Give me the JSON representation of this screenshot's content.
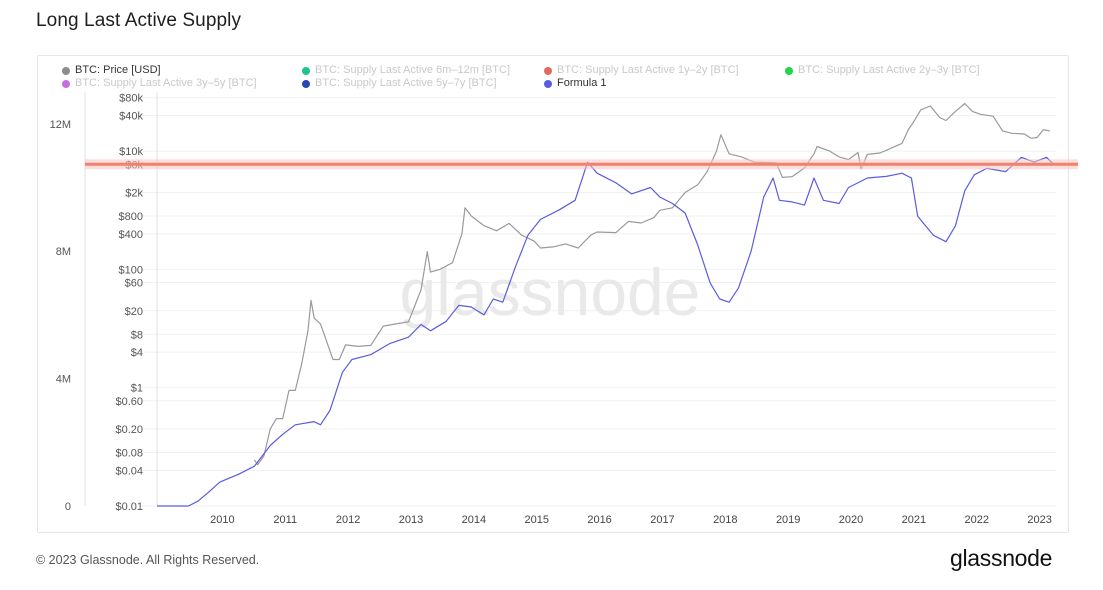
{
  "page": {
    "title": "Long Last Active Supply",
    "copyright": "© 2023 Glassnode. All Rights Reserved.",
    "logo_text": "glassnode",
    "watermark_text": "glassnode"
  },
  "legend": [
    {
      "label": "BTC: Price [USD]",
      "color": "#8c8c8c",
      "muted": false
    },
    {
      "label": "BTC: Supply Last Active 6m–12m [BTC]",
      "color": "#1fc48a",
      "muted": true
    },
    {
      "label": "BTC: Supply Last Active 1y–2y [BTC]",
      "color": "#e06a5f",
      "muted": true
    },
    {
      "label": "BTC: Supply Last Active 2y–3y [BTC]",
      "color": "#22d64a",
      "muted": true
    },
    {
      "label": "BTC: Supply Last Active 3y–5y [BTC]",
      "color": "#c66fdc",
      "muted": true
    },
    {
      "label": "BTC: Supply Last Active 5y–7y [BTC]",
      "color": "#2747b8",
      "muted": true
    },
    {
      "label": "Formula 1",
      "color": "#5a5ce0",
      "muted": false
    }
  ],
  "chart_data": {
    "type": "line",
    "title": "Long Last Active Supply",
    "x_ticks": [
      "2010",
      "2011",
      "2012",
      "2013",
      "2014",
      "2015",
      "2016",
      "2017",
      "2018",
      "2019",
      "2020",
      "2021",
      "2022",
      "2023"
    ],
    "left_axis": {
      "ticks": [
        "0",
        "4M",
        "8M",
        "12M"
      ],
      "values": [
        0,
        4000000,
        8000000,
        12000000
      ],
      "range": [
        0,
        13000000
      ]
    },
    "right_axis": {
      "scale": "log",
      "ticks": [
        "$0.01",
        "$0.04",
        "$0.08",
        "$0.20",
        "$0.60",
        "$1",
        "$4",
        "$8",
        "$20",
        "$60",
        "$100",
        "$400",
        "$800",
        "$2k",
        "$6k",
        "$10k",
        "$40k",
        "$80k"
      ],
      "values": [
        0.01,
        0.04,
        0.08,
        0.2,
        0.6,
        1,
        4,
        8,
        20,
        60,
        100,
        400,
        800,
        2000,
        6000,
        10000,
        40000,
        80000
      ],
      "range": [
        0.01,
        100000
      ]
    },
    "grid": true,
    "legend_position": "top",
    "horizontal_line": {
      "price": 6000,
      "color": "#f08070",
      "note": "highlighted level"
    },
    "series": [
      {
        "name": "BTC: Price [USD]",
        "axis": "right",
        "color": "#9a9a9a",
        "points": [
          [
            2010.55,
            0.06
          ],
          [
            2010.6,
            0.05
          ],
          [
            2010.7,
            0.07
          ],
          [
            2010.8,
            0.2
          ],
          [
            2010.9,
            0.3
          ],
          [
            2011.0,
            0.3
          ],
          [
            2011.1,
            0.9
          ],
          [
            2011.2,
            0.9
          ],
          [
            2011.3,
            2.5
          ],
          [
            2011.4,
            9
          ],
          [
            2011.45,
            30
          ],
          [
            2011.5,
            15
          ],
          [
            2011.6,
            12
          ],
          [
            2011.7,
            6
          ],
          [
            2011.8,
            3
          ],
          [
            2011.9,
            3
          ],
          [
            2012.0,
            5.3
          ],
          [
            2012.2,
            5
          ],
          [
            2012.4,
            5.2
          ],
          [
            2012.6,
            11
          ],
          [
            2012.8,
            12
          ],
          [
            2013.0,
            13
          ],
          [
            2013.2,
            45
          ],
          [
            2013.3,
            200
          ],
          [
            2013.35,
            90
          ],
          [
            2013.5,
            100
          ],
          [
            2013.7,
            130
          ],
          [
            2013.85,
            400
          ],
          [
            2013.9,
            1100
          ],
          [
            2014.0,
            800
          ],
          [
            2014.2,
            550
          ],
          [
            2014.4,
            450
          ],
          [
            2014.6,
            600
          ],
          [
            2014.8,
            380
          ],
          [
            2015.0,
            300
          ],
          [
            2015.1,
            230
          ],
          [
            2015.3,
            240
          ],
          [
            2015.5,
            270
          ],
          [
            2015.7,
            230
          ],
          [
            2015.9,
            380
          ],
          [
            2016.0,
            430
          ],
          [
            2016.3,
            420
          ],
          [
            2016.5,
            650
          ],
          [
            2016.7,
            610
          ],
          [
            2016.9,
            750
          ],
          [
            2017.0,
            1000
          ],
          [
            2017.2,
            1100
          ],
          [
            2017.4,
            2000
          ],
          [
            2017.6,
            2700
          ],
          [
            2017.75,
            4500
          ],
          [
            2017.9,
            10000
          ],
          [
            2017.97,
            19000
          ],
          [
            2018.1,
            9000
          ],
          [
            2018.3,
            8000
          ],
          [
            2018.5,
            6500
          ],
          [
            2018.7,
            6400
          ],
          [
            2018.85,
            6300
          ],
          [
            2018.95,
            3600
          ],
          [
            2019.1,
            3700
          ],
          [
            2019.3,
            5200
          ],
          [
            2019.45,
            9000
          ],
          [
            2019.5,
            12000
          ],
          [
            2019.7,
            10000
          ],
          [
            2019.85,
            8000
          ],
          [
            2020.0,
            7200
          ],
          [
            2020.15,
            9500
          ],
          [
            2020.2,
            5000
          ],
          [
            2020.3,
            8800
          ],
          [
            2020.5,
            9300
          ],
          [
            2020.7,
            11500
          ],
          [
            2020.85,
            13500
          ],
          [
            2020.95,
            23000
          ],
          [
            2021.05,
            33000
          ],
          [
            2021.15,
            50000
          ],
          [
            2021.3,
            58000
          ],
          [
            2021.45,
            37000
          ],
          [
            2021.55,
            33000
          ],
          [
            2021.7,
            47000
          ],
          [
            2021.85,
            64000
          ],
          [
            2021.97,
            47000
          ],
          [
            2022.1,
            42000
          ],
          [
            2022.3,
            39000
          ],
          [
            2022.45,
            22000
          ],
          [
            2022.6,
            20000
          ],
          [
            2022.8,
            19500
          ],
          [
            2022.9,
            16500
          ],
          [
            2023.0,
            17000
          ],
          [
            2023.1,
            23000
          ],
          [
            2023.2,
            22000
          ]
        ]
      },
      {
        "name": "Formula 1",
        "axis": "left",
        "color": "#5a5ce0",
        "points": [
          [
            2009.0,
            0
          ],
          [
            2009.5,
            0
          ],
          [
            2009.65,
            0.15
          ],
          [
            2009.8,
            0.4
          ],
          [
            2010.0,
            0.75
          ],
          [
            2010.3,
            1.0
          ],
          [
            2010.55,
            1.25
          ],
          [
            2010.8,
            1.9
          ],
          [
            2011.0,
            2.25
          ],
          [
            2011.2,
            2.55
          ],
          [
            2011.5,
            2.65
          ],
          [
            2011.6,
            2.55
          ],
          [
            2011.75,
            3.0
          ],
          [
            2011.95,
            4.2
          ],
          [
            2012.1,
            4.6
          ],
          [
            2012.4,
            4.75
          ],
          [
            2012.7,
            5.1
          ],
          [
            2013.0,
            5.3
          ],
          [
            2013.2,
            5.7
          ],
          [
            2013.35,
            5.5
          ],
          [
            2013.6,
            5.8
          ],
          [
            2013.8,
            6.3
          ],
          [
            2014.0,
            6.25
          ],
          [
            2014.2,
            6.0
          ],
          [
            2014.35,
            6.5
          ],
          [
            2014.5,
            6.4
          ],
          [
            2014.7,
            7.5
          ],
          [
            2014.9,
            8.5
          ],
          [
            2015.1,
            9.0
          ],
          [
            2015.4,
            9.3
          ],
          [
            2015.65,
            9.6
          ],
          [
            2015.85,
            10.8
          ],
          [
            2016.0,
            10.45
          ],
          [
            2016.3,
            10.15
          ],
          [
            2016.55,
            9.8
          ],
          [
            2016.85,
            10.0
          ],
          [
            2017.0,
            9.7
          ],
          [
            2017.2,
            9.5
          ],
          [
            2017.4,
            9.2
          ],
          [
            2017.6,
            8.2
          ],
          [
            2017.8,
            7.0
          ],
          [
            2017.95,
            6.5
          ],
          [
            2018.1,
            6.4
          ],
          [
            2018.25,
            6.85
          ],
          [
            2018.45,
            8.0
          ],
          [
            2018.65,
            9.7
          ],
          [
            2018.8,
            10.3
          ],
          [
            2018.9,
            9.6
          ],
          [
            2019.1,
            9.55
          ],
          [
            2019.3,
            9.45
          ],
          [
            2019.45,
            10.3
          ],
          [
            2019.6,
            9.6
          ],
          [
            2019.85,
            9.5
          ],
          [
            2020.0,
            10.0
          ],
          [
            2020.3,
            10.3
          ],
          [
            2020.6,
            10.35
          ],
          [
            2020.85,
            10.45
          ],
          [
            2021.0,
            10.3
          ],
          [
            2021.1,
            9.1
          ],
          [
            2021.35,
            8.5
          ],
          [
            2021.55,
            8.3
          ],
          [
            2021.7,
            8.8
          ],
          [
            2021.85,
            9.9
          ],
          [
            2022.0,
            10.4
          ],
          [
            2022.2,
            10.6
          ],
          [
            2022.5,
            10.5
          ],
          [
            2022.75,
            10.95
          ],
          [
            2022.95,
            10.8
          ],
          [
            2023.15,
            10.95
          ],
          [
            2023.25,
            10.75
          ]
        ]
      }
    ]
  }
}
